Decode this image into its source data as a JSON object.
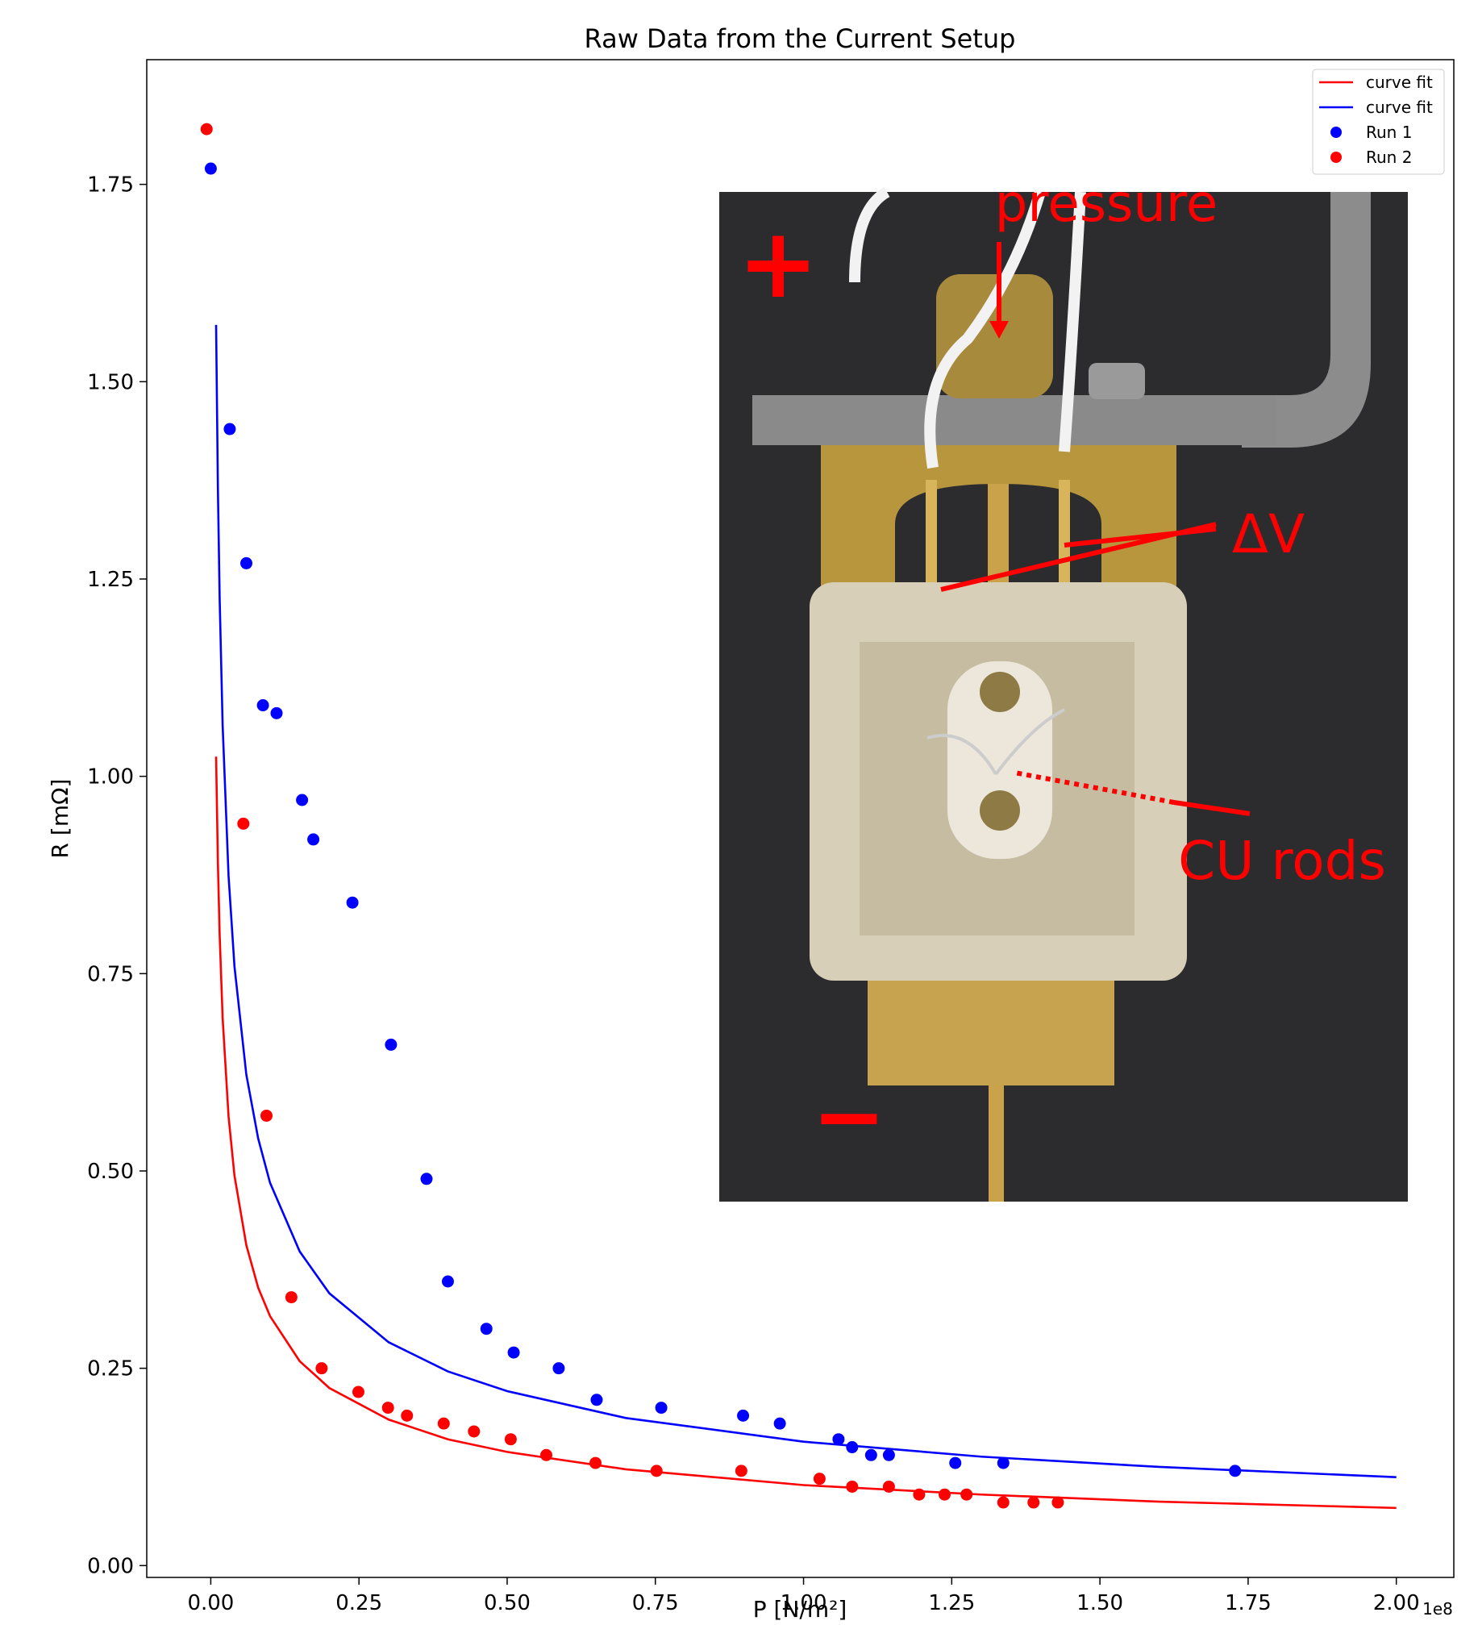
{
  "chart_data": {
    "type": "scatter",
    "title": "Raw Data from the Current Setup",
    "x_label": "P [N/m²]",
    "y_label": "R [mΩ]",
    "x_offset_label": "1e8",
    "xlim": [
      -0.108,
      2.097
    ],
    "ylim": [
      -0.015,
      1.908
    ],
    "xticks": [
      {
        "value": 0,
        "label": "0.00"
      },
      {
        "value": 0.25,
        "label": "0.25"
      },
      {
        "value": 0.5,
        "label": "0.50"
      },
      {
        "value": 0.75,
        "label": "0.75"
      },
      {
        "value": 1,
        "label": "1.00"
      },
      {
        "value": 1.25,
        "label": "1.25"
      },
      {
        "value": 1.5,
        "label": "1.50"
      },
      {
        "value": 1.75,
        "label": "1.75"
      },
      {
        "value": 2,
        "label": "2.00"
      }
    ],
    "yticks": [
      {
        "value": 0,
        "label": "0.00"
      },
      {
        "value": 0.25,
        "label": "0.25"
      },
      {
        "value": 0.5,
        "label": "0.50"
      },
      {
        "value": 0.75,
        "label": "0.75"
      },
      {
        "value": 1,
        "label": "1.00"
      },
      {
        "value": 1.25,
        "label": "1.25"
      },
      {
        "value": 1.5,
        "label": "1.50"
      },
      {
        "value": 1.75,
        "label": "1.75"
      }
    ],
    "legend": "upper right",
    "series": [
      {
        "name": "curve fit",
        "type": "line",
        "color": "#ff0000",
        "x": [
          0.009,
          0.012,
          0.015,
          0.02,
          0.03,
          0.04,
          0.06,
          0.08,
          0.1,
          0.15,
          0.2,
          0.3,
          0.4,
          0.5,
          0.7,
          1.0,
          1.3,
          1.6,
          2.0
        ],
        "values": [
          1.025,
          0.891,
          0.799,
          0.694,
          0.569,
          0.494,
          0.406,
          0.352,
          0.316,
          0.259,
          0.225,
          0.185,
          0.16,
          0.144,
          0.122,
          0.102,
          0.09,
          0.081,
          0.073
        ]
      },
      {
        "name": "curve fit",
        "type": "line",
        "color": "#0000ff",
        "x": [
          0.009,
          0.012,
          0.015,
          0.02,
          0.03,
          0.04,
          0.06,
          0.08,
          0.1,
          0.15,
          0.2,
          0.3,
          0.4,
          0.5,
          0.7,
          1.0,
          1.3,
          1.6,
          2.0
        ],
        "values": [
          1.572,
          1.366,
          1.225,
          1.065,
          0.874,
          0.759,
          0.622,
          0.541,
          0.485,
          0.398,
          0.345,
          0.283,
          0.246,
          0.221,
          0.187,
          0.157,
          0.138,
          0.125,
          0.112
        ]
      },
      {
        "name": "Run 1",
        "type": "scatter",
        "color": "#0000ff",
        "x": [
          0.0,
          0.032,
          0.06,
          0.088,
          0.111,
          0.154,
          0.173,
          0.239,
          0.304,
          0.364,
          0.4,
          0.465,
          0.511,
          0.587,
          0.651,
          0.76,
          0.898,
          0.96,
          1.059,
          1.082,
          1.114,
          1.144,
          1.256,
          1.337,
          1.728
        ],
        "values": [
          1.77,
          1.44,
          1.27,
          1.09,
          1.08,
          0.97,
          0.92,
          0.84,
          0.66,
          0.49,
          0.36,
          0.3,
          0.27,
          0.25,
          0.21,
          0.2,
          0.19,
          0.18,
          0.16,
          0.15,
          0.14,
          0.14,
          0.13,
          0.13,
          0.12
        ]
      },
      {
        "name": "Run 2",
        "type": "scatter",
        "color": "#ff0000",
        "x": [
          -0.007,
          0.055,
          0.094,
          0.136,
          0.187,
          0.249,
          0.299,
          0.331,
          0.393,
          0.444,
          0.506,
          0.566,
          0.649,
          0.752,
          0.895,
          1.027,
          1.082,
          1.144,
          1.195,
          1.238,
          1.275,
          1.337,
          1.388,
          1.429
        ],
        "values": [
          1.82,
          0.94,
          0.57,
          0.34,
          0.25,
          0.22,
          0.2,
          0.19,
          0.18,
          0.17,
          0.16,
          0.14,
          0.13,
          0.12,
          0.12,
          0.11,
          0.1,
          0.1,
          0.09,
          0.09,
          0.09,
          0.08,
          0.08,
          0.08
        ]
      }
    ],
    "inset_annotations": {
      "pressure": "pressure",
      "plus": "+",
      "delta_v": "ΔV",
      "rods": "CU rods",
      "minus": "−"
    }
  }
}
